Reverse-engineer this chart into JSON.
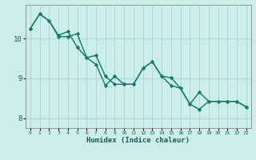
{
  "xlabel": "Humidex (Indice chaleur)",
  "ylabel": "",
  "bg_color": "#cceee8",
  "grid_color": "#aad4ce",
  "line_color": "#1a7a6e",
  "xlim": [
    -0.5,
    23.5
  ],
  "ylim": [
    7.75,
    10.85
  ],
  "yticks": [
    8,
    9,
    10
  ],
  "xticks": [
    0,
    1,
    2,
    3,
    4,
    5,
    6,
    7,
    8,
    9,
    10,
    11,
    12,
    13,
    14,
    15,
    16,
    17,
    18,
    19,
    20,
    21,
    22,
    23
  ],
  "series": [
    [
      10.25,
      10.62,
      10.45,
      10.05,
      10.05,
      10.12,
      9.52,
      9.35,
      8.82,
      9.05,
      8.85,
      8.85,
      9.25,
      9.42,
      9.05,
      9.02,
      8.75,
      8.35,
      8.22,
      8.42,
      8.42,
      8.42,
      8.42,
      8.28
    ],
    [
      10.25,
      10.62,
      10.45,
      10.08,
      10.18,
      9.78,
      9.52,
      9.58,
      9.05,
      8.85,
      8.85,
      8.85,
      9.25,
      9.42,
      9.05,
      8.82,
      8.75,
      8.35,
      8.65,
      8.42,
      8.42,
      8.42,
      8.42,
      8.28
    ],
    [
      10.25,
      10.62,
      10.45,
      10.08,
      10.18,
      9.78,
      9.52,
      9.58,
      9.05,
      8.85,
      8.85,
      8.85,
      9.25,
      9.42,
      9.05,
      8.82,
      8.75,
      8.35,
      8.65,
      8.42,
      8.42,
      8.42,
      8.42,
      8.28
    ],
    [
      10.25,
      10.62,
      10.45,
      10.05,
      10.05,
      10.12,
      9.52,
      9.35,
      8.82,
      9.05,
      8.85,
      8.85,
      9.25,
      9.42,
      9.05,
      9.02,
      8.75,
      8.35,
      8.22,
      8.42,
      8.42,
      8.42,
      8.42,
      8.28
    ]
  ]
}
